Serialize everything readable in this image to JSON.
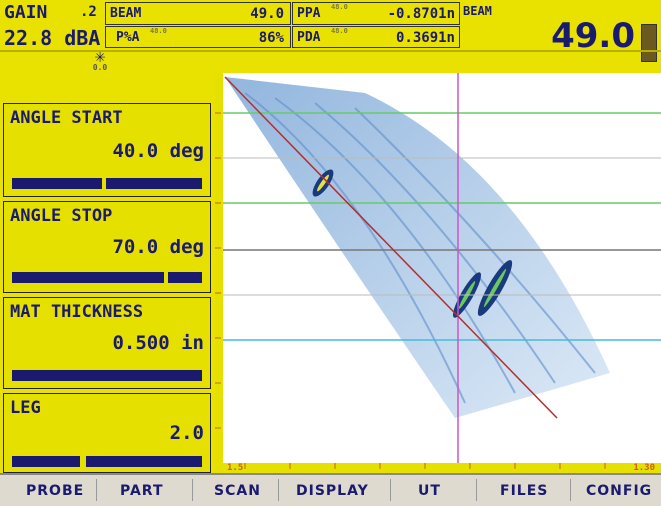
{
  "header": {
    "gain_label": "GAIN",
    "gain_step": ".2",
    "gain_value": "22.8 dBA",
    "beam_label": "BEAM",
    "beam_value": "49.0",
    "pxa_label": "P%A",
    "pxa_sub": "48.0",
    "pxa_value": "86%",
    "ppa_label": "PPA",
    "ppa_sub": "48.0",
    "ppa_value": "-0.8701n",
    "pda_label": "PDA",
    "pda_sub": "48.0",
    "pda_value": "0.3691n",
    "beam_big_label": "BEAM",
    "beam_big_value": "49.0",
    "star_value": "0.0"
  },
  "panels": [
    {
      "title": "ANGLE START",
      "value": "40.0 deg",
      "bar_level": 0.97
    },
    {
      "title": "ANGLE STOP",
      "value": "70.0 deg",
      "bar_level": 0.97
    },
    {
      "title": "MAT THICKNESS",
      "value": "0.500 in",
      "bar_level": 0.97
    },
    {
      "title": "LEG",
      "value": "2.0",
      "bar_level": 0.97
    }
  ],
  "scale": {
    "left_marker": "1.5",
    "right_marker": "1.30"
  },
  "menu": {
    "items": [
      "PROBE",
      "PART",
      "SCAN",
      "DISPLAY",
      "UT",
      "FILES",
      "CONFIG"
    ]
  },
  "colors": {
    "background": "#e6e000",
    "text": "#1a1a6e",
    "scan_background": "#ffffff",
    "scan_fill": "#9fc4e6"
  }
}
